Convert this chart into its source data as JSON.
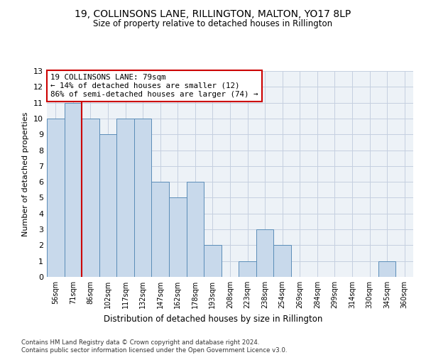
{
  "title1": "19, COLLINSONS LANE, RILLINGTON, MALTON, YO17 8LP",
  "title2": "Size of property relative to detached houses in Rillington",
  "xlabel": "Distribution of detached houses by size in Rillington",
  "ylabel": "Number of detached properties",
  "categories": [
    "56sqm",
    "71sqm",
    "86sqm",
    "102sqm",
    "117sqm",
    "132sqm",
    "147sqm",
    "162sqm",
    "178sqm",
    "193sqm",
    "208sqm",
    "223sqm",
    "238sqm",
    "254sqm",
    "269sqm",
    "284sqm",
    "299sqm",
    "314sqm",
    "330sqm",
    "345sqm",
    "360sqm"
  ],
  "values": [
    10,
    11,
    10,
    9,
    10,
    10,
    6,
    5,
    6,
    2,
    0,
    1,
    3,
    2,
    0,
    0,
    0,
    0,
    0,
    1,
    0
  ],
  "bar_color": "#c8d9eb",
  "bar_edge_color": "#5b8db8",
  "subject_line_color": "#cc0000",
  "annotation_text": "19 COLLINSONS LANE: 79sqm\n← 14% of detached houses are smaller (12)\n86% of semi-detached houses are larger (74) →",
  "annotation_box_color": "white",
  "annotation_box_edge": "#cc0000",
  "ylim": [
    0,
    13
  ],
  "yticks": [
    0,
    1,
    2,
    3,
    4,
    5,
    6,
    7,
    8,
    9,
    10,
    11,
    12,
    13
  ],
  "footnote": "Contains HM Land Registry data © Crown copyright and database right 2024.\nContains public sector information licensed under the Open Government Licence v3.0.",
  "bg_color": "#edf2f7",
  "grid_color": "#c5cfe0"
}
